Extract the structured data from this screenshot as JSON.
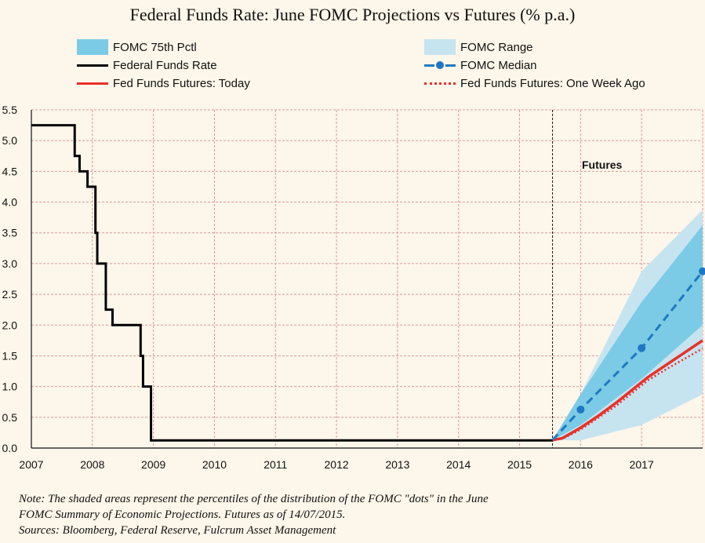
{
  "chart_data": {
    "type": "line",
    "title": "Federal Funds Rate: June FOMC Projections vs Futures (% p.a.)",
    "xlabel": "",
    "ylabel": "",
    "xlim": [
      2007,
      2018
    ],
    "ylim": [
      0,
      5.5
    ],
    "x_ticks": [
      "2007",
      "2008",
      "2009",
      "2010",
      "2011",
      "2012",
      "2013",
      "2014",
      "2015",
      "2016",
      "2017"
    ],
    "y_ticks": [
      "0.0",
      "0.5",
      "1.0",
      "1.5",
      "2.0",
      "2.5",
      "3.0",
      "3.5",
      "4.0",
      "4.5",
      "5.0",
      "5.5"
    ],
    "grid": true,
    "legend_position": "top",
    "annotation": "Futures",
    "futures_start_x": 2015.54,
    "colors": {
      "background": "#fdf6ea",
      "grid": "#d99a9a",
      "fed_funds": "#000000",
      "futures_today": "#e8302a",
      "futures_week_ago": "#e8302a",
      "median": "#1e78c2",
      "pctl75": "#7ccbe6",
      "range": "#c6e4f0"
    },
    "series": [
      {
        "name": "Federal Funds Rate",
        "style": "step",
        "points": [
          [
            2007.0,
            5.25
          ],
          [
            2007.71,
            5.25
          ],
          [
            2007.71,
            4.75
          ],
          [
            2007.79,
            4.75
          ],
          [
            2007.79,
            4.5
          ],
          [
            2007.92,
            4.5
          ],
          [
            2007.92,
            4.25
          ],
          [
            2008.05,
            4.25
          ],
          [
            2008.05,
            3.5
          ],
          [
            2008.08,
            3.5
          ],
          [
            2008.08,
            3.0
          ],
          [
            2008.22,
            3.0
          ],
          [
            2008.22,
            2.25
          ],
          [
            2008.33,
            2.25
          ],
          [
            2008.33,
            2.0
          ],
          [
            2008.79,
            2.0
          ],
          [
            2008.79,
            1.5
          ],
          [
            2008.83,
            1.5
          ],
          [
            2008.83,
            1.0
          ],
          [
            2008.96,
            1.0
          ],
          [
            2008.96,
            0.125
          ],
          [
            2015.54,
            0.125
          ]
        ]
      },
      {
        "name": "Fed Funds Futures: Today",
        "points": [
          [
            2015.54,
            0.13
          ],
          [
            2015.7,
            0.16
          ],
          [
            2016.0,
            0.33
          ],
          [
            2016.3,
            0.53
          ],
          [
            2016.6,
            0.75
          ],
          [
            2016.85,
            0.95
          ],
          [
            2017.1,
            1.15
          ],
          [
            2017.4,
            1.35
          ],
          [
            2017.7,
            1.55
          ],
          [
            2018.0,
            1.75
          ]
        ]
      },
      {
        "name": "Fed Funds Futures: One Week Ago",
        "points": [
          [
            2015.54,
            0.13
          ],
          [
            2015.7,
            0.15
          ],
          [
            2016.0,
            0.3
          ],
          [
            2016.3,
            0.5
          ],
          [
            2016.6,
            0.7
          ],
          [
            2016.85,
            0.9
          ],
          [
            2017.1,
            1.1
          ],
          [
            2017.4,
            1.28
          ],
          [
            2017.7,
            1.45
          ],
          [
            2018.0,
            1.62
          ]
        ]
      },
      {
        "name": "FOMC Median",
        "markers": [
          [
            2016.0,
            0.625
          ],
          [
            2017.0,
            1.625
          ],
          [
            2018.0,
            2.875
          ]
        ],
        "points": [
          [
            2015.54,
            0.13
          ],
          [
            2016.0,
            0.625
          ],
          [
            2017.0,
            1.625
          ],
          [
            2018.0,
            2.875
          ]
        ]
      }
    ],
    "bands": [
      {
        "name": "FOMC Range",
        "x": [
          2015.54,
          2016.0,
          2017.0,
          2018.0
        ],
        "lower": [
          0.13,
          0.125,
          0.375,
          0.875
        ],
        "upper": [
          0.13,
          0.875,
          2.875,
          3.875
        ]
      },
      {
        "name": "FOMC 75th Pctl",
        "x": [
          2015.54,
          2016.0,
          2017.0,
          2018.0
        ],
        "lower": [
          0.13,
          0.375,
          1.125,
          2.0
        ],
        "upper": [
          0.13,
          0.875,
          2.375,
          3.625
        ]
      }
    ]
  },
  "legend": {
    "pctl75": "FOMC 75th Pctl",
    "range": "FOMC Range",
    "fed_funds": "Federal Funds Rate",
    "median": "FOMC Median",
    "futures_today": "Fed Funds Futures: Today",
    "futures_week_ago": "Fed Funds Futures: One Week Ago"
  },
  "notes": {
    "line1": "Note: The shaded areas represent the percentiles of the distribution  of  the FOMC \"dots\" in the June",
    "line2": "FOMC Summary of Economic Projections. Futures as of 14/07/2015.",
    "line3": "Sources: Bloomberg, Federal Reserve, Fulcrum Asset Management"
  }
}
